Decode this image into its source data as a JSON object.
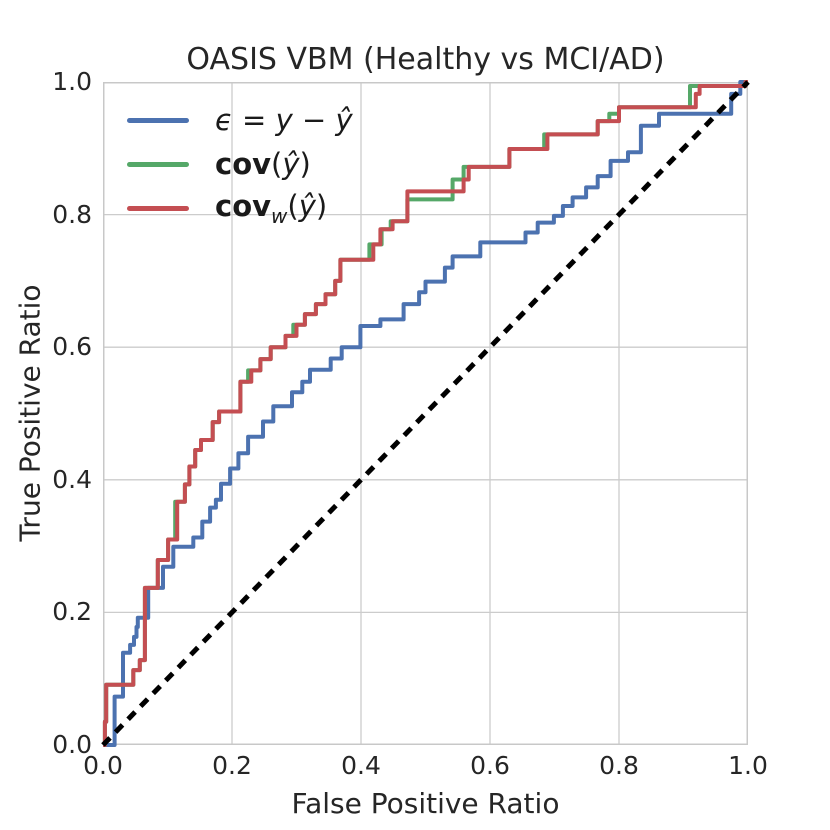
{
  "title": "OASIS VBM (Healthy vs MCI/AD)",
  "colors": {
    "background": "#ffffff",
    "grid": "#cccccc",
    "spine": "#c8c8c8",
    "text": "#262626",
    "series_blue": "#4C72B0",
    "series_green": "#55A868",
    "series_red": "#C44E52",
    "chance_line": "#000000"
  },
  "chart_data": {
    "type": "line",
    "subtype": "roc-step-curves",
    "title": "OASIS VBM (Healthy vs MCI/AD)",
    "xlabel": "False Positive Ratio",
    "ylabel": "True Positive Ratio",
    "xlim": [
      0.0,
      1.0
    ],
    "ylim": [
      0.0,
      1.0
    ],
    "grid": true,
    "legend_position": "upper left",
    "x_ticks": {
      "values": [
        0.0,
        0.2,
        0.4,
        0.6,
        0.8,
        1.0
      ],
      "labels": [
        "0.0",
        "0.2",
        "0.4",
        "0.6",
        "0.8",
        "1.0"
      ]
    },
    "y_ticks": {
      "values": [
        0.0,
        0.2,
        0.4,
        0.6,
        0.8,
        1.0
      ],
      "labels": [
        "0.0",
        "0.2",
        "0.4",
        "0.6",
        "0.8",
        "1.0"
      ]
    },
    "series": [
      {
        "key": "epsilon-residual",
        "name": "ϵ = y − ŷ",
        "color": "#4C72B0",
        "line_style": "solid",
        "line_width": 4,
        "points": [
          [
            0,
            0
          ],
          [
            0.018,
            0
          ],
          [
            0.018,
            0.073
          ],
          [
            0.031,
            0.073
          ],
          [
            0.031,
            0.139
          ],
          [
            0.042,
            0.139
          ],
          [
            0.042,
            0.151
          ],
          [
            0.048,
            0.151
          ],
          [
            0.048,
            0.163
          ],
          [
            0.052,
            0.163
          ],
          [
            0.052,
            0.178
          ],
          [
            0.054,
            0.178
          ],
          [
            0.054,
            0.192
          ],
          [
            0.07,
            0.192
          ],
          [
            0.07,
            0.237
          ],
          [
            0.093,
            0.237
          ],
          [
            0.093,
            0.269
          ],
          [
            0.109,
            0.269
          ],
          [
            0.109,
            0.299
          ],
          [
            0.14,
            0.299
          ],
          [
            0.14,
            0.313
          ],
          [
            0.154,
            0.313
          ],
          [
            0.154,
            0.337
          ],
          [
            0.166,
            0.337
          ],
          [
            0.166,
            0.358
          ],
          [
            0.175,
            0.358
          ],
          [
            0.175,
            0.37
          ],
          [
            0.183,
            0.37
          ],
          [
            0.183,
            0.394
          ],
          [
            0.197,
            0.394
          ],
          [
            0.197,
            0.417
          ],
          [
            0.21,
            0.417
          ],
          [
            0.21,
            0.44
          ],
          [
            0.225,
            0.44
          ],
          [
            0.225,
            0.465
          ],
          [
            0.248,
            0.465
          ],
          [
            0.248,
            0.488
          ],
          [
            0.264,
            0.488
          ],
          [
            0.264,
            0.511
          ],
          [
            0.293,
            0.511
          ],
          [
            0.293,
            0.532
          ],
          [
            0.309,
            0.532
          ],
          [
            0.309,
            0.548
          ],
          [
            0.321,
            0.548
          ],
          [
            0.321,
            0.566
          ],
          [
            0.353,
            0.566
          ],
          [
            0.353,
            0.583
          ],
          [
            0.37,
            0.583
          ],
          [
            0.37,
            0.6
          ],
          [
            0.399,
            0.6
          ],
          [
            0.399,
            0.632
          ],
          [
            0.43,
            0.632
          ],
          [
            0.43,
            0.642
          ],
          [
            0.466,
            0.642
          ],
          [
            0.466,
            0.665
          ],
          [
            0.49,
            0.665
          ],
          [
            0.49,
            0.683
          ],
          [
            0.5,
            0.683
          ],
          [
            0.5,
            0.699
          ],
          [
            0.53,
            0.699
          ],
          [
            0.53,
            0.72
          ],
          [
            0.542,
            0.72
          ],
          [
            0.542,
            0.737
          ],
          [
            0.585,
            0.737
          ],
          [
            0.585,
            0.758
          ],
          [
            0.655,
            0.758
          ],
          [
            0.655,
            0.773
          ],
          [
            0.674,
            0.773
          ],
          [
            0.674,
            0.788
          ],
          [
            0.699,
            0.788
          ],
          [
            0.699,
            0.798
          ],
          [
            0.713,
            0.798
          ],
          [
            0.713,
            0.813
          ],
          [
            0.728,
            0.813
          ],
          [
            0.728,
            0.826
          ],
          [
            0.749,
            0.826
          ],
          [
            0.749,
            0.841
          ],
          [
            0.767,
            0.841
          ],
          [
            0.767,
            0.858
          ],
          [
            0.787,
            0.858
          ],
          [
            0.787,
            0.881
          ],
          [
            0.814,
            0.881
          ],
          [
            0.814,
            0.894
          ],
          [
            0.834,
            0.894
          ],
          [
            0.834,
            0.934
          ],
          [
            0.862,
            0.934
          ],
          [
            0.862,
            0.952
          ],
          [
            0.974,
            0.952
          ],
          [
            0.974,
            0.982
          ],
          [
            0.988,
            0.982
          ],
          [
            0.988,
            1
          ],
          [
            1,
            1
          ]
        ]
      },
      {
        "key": "cov",
        "name": "cov(ŷ)",
        "color": "#55A868",
        "line_style": "solid",
        "line_width": 4,
        "points": [
          [
            0,
            0
          ],
          [
            0.003,
            0
          ],
          [
            0.003,
            0.035
          ],
          [
            0.005,
            0.035
          ],
          [
            0.005,
            0.091
          ],
          [
            0.047,
            0.091
          ],
          [
            0.047,
            0.113
          ],
          [
            0.057,
            0.113
          ],
          [
            0.057,
            0.128
          ],
          [
            0.065,
            0.128
          ],
          [
            0.065,
            0.237
          ],
          [
            0.085,
            0.237
          ],
          [
            0.085,
            0.279
          ],
          [
            0.101,
            0.279
          ],
          [
            0.101,
            0.31
          ],
          [
            0.112,
            0.31
          ],
          [
            0.112,
            0.367
          ],
          [
            0.127,
            0.367
          ],
          [
            0.127,
            0.393
          ],
          [
            0.134,
            0.393
          ],
          [
            0.134,
            0.42
          ],
          [
            0.143,
            0.42
          ],
          [
            0.143,
            0.445
          ],
          [
            0.152,
            0.445
          ],
          [
            0.152,
            0.46
          ],
          [
            0.17,
            0.46
          ],
          [
            0.17,
            0.487
          ],
          [
            0.18,
            0.487
          ],
          [
            0.18,
            0.503
          ],
          [
            0.213,
            0.503
          ],
          [
            0.213,
            0.548
          ],
          [
            0.225,
            0.548
          ],
          [
            0.225,
            0.565
          ],
          [
            0.244,
            0.565
          ],
          [
            0.244,
            0.582
          ],
          [
            0.26,
            0.582
          ],
          [
            0.26,
            0.6
          ],
          [
            0.283,
            0.6
          ],
          [
            0.283,
            0.617
          ],
          [
            0.295,
            0.617
          ],
          [
            0.295,
            0.634
          ],
          [
            0.313,
            0.634
          ],
          [
            0.313,
            0.65
          ],
          [
            0.33,
            0.65
          ],
          [
            0.33,
            0.665
          ],
          [
            0.345,
            0.665
          ],
          [
            0.345,
            0.68
          ],
          [
            0.36,
            0.68
          ],
          [
            0.36,
            0.7
          ],
          [
            0.368,
            0.7
          ],
          [
            0.368,
            0.732
          ],
          [
            0.413,
            0.732
          ],
          [
            0.413,
            0.755
          ],
          [
            0.432,
            0.755
          ],
          [
            0.432,
            0.778
          ],
          [
            0.446,
            0.778
          ],
          [
            0.446,
            0.79
          ],
          [
            0.472,
            0.79
          ],
          [
            0.472,
            0.823
          ],
          [
            0.542,
            0.823
          ],
          [
            0.542,
            0.853
          ],
          [
            0.559,
            0.853
          ],
          [
            0.559,
            0.872
          ],
          [
            0.63,
            0.872
          ],
          [
            0.63,
            0.899
          ],
          [
            0.684,
            0.899
          ],
          [
            0.684,
            0.921
          ],
          [
            0.767,
            0.921
          ],
          [
            0.767,
            0.941
          ],
          [
            0.785,
            0.941
          ],
          [
            0.785,
            0.952
          ],
          [
            0.8,
            0.952
          ],
          [
            0.8,
            0.962
          ],
          [
            0.91,
            0.962
          ],
          [
            0.91,
            0.994
          ],
          [
            0.996,
            0.994
          ],
          [
            0.996,
            1
          ],
          [
            1,
            1
          ]
        ]
      },
      {
        "key": "cov-weighted",
        "name": "cov_w(ŷ)",
        "color": "#C44E52",
        "line_style": "solid",
        "line_width": 4,
        "points": [
          [
            0,
            0
          ],
          [
            0.003,
            0
          ],
          [
            0.003,
            0.035
          ],
          [
            0.005,
            0.035
          ],
          [
            0.005,
            0.091
          ],
          [
            0.047,
            0.091
          ],
          [
            0.047,
            0.113
          ],
          [
            0.057,
            0.113
          ],
          [
            0.057,
            0.128
          ],
          [
            0.065,
            0.128
          ],
          [
            0.065,
            0.237
          ],
          [
            0.085,
            0.237
          ],
          [
            0.085,
            0.279
          ],
          [
            0.101,
            0.279
          ],
          [
            0.101,
            0.31
          ],
          [
            0.115,
            0.31
          ],
          [
            0.115,
            0.367
          ],
          [
            0.127,
            0.367
          ],
          [
            0.127,
            0.393
          ],
          [
            0.134,
            0.393
          ],
          [
            0.134,
            0.42
          ],
          [
            0.143,
            0.42
          ],
          [
            0.143,
            0.445
          ],
          [
            0.152,
            0.445
          ],
          [
            0.152,
            0.46
          ],
          [
            0.17,
            0.46
          ],
          [
            0.17,
            0.487
          ],
          [
            0.18,
            0.487
          ],
          [
            0.18,
            0.503
          ],
          [
            0.213,
            0.503
          ],
          [
            0.213,
            0.548
          ],
          [
            0.23,
            0.548
          ],
          [
            0.23,
            0.565
          ],
          [
            0.244,
            0.565
          ],
          [
            0.244,
            0.582
          ],
          [
            0.26,
            0.582
          ],
          [
            0.26,
            0.6
          ],
          [
            0.283,
            0.6
          ],
          [
            0.283,
            0.617
          ],
          [
            0.3,
            0.617
          ],
          [
            0.3,
            0.634
          ],
          [
            0.313,
            0.634
          ],
          [
            0.313,
            0.65
          ],
          [
            0.33,
            0.65
          ],
          [
            0.33,
            0.665
          ],
          [
            0.345,
            0.665
          ],
          [
            0.345,
            0.68
          ],
          [
            0.36,
            0.68
          ],
          [
            0.36,
            0.7
          ],
          [
            0.368,
            0.7
          ],
          [
            0.368,
            0.732
          ],
          [
            0.419,
            0.732
          ],
          [
            0.419,
            0.755
          ],
          [
            0.43,
            0.755
          ],
          [
            0.43,
            0.778
          ],
          [
            0.449,
            0.778
          ],
          [
            0.449,
            0.79
          ],
          [
            0.472,
            0.79
          ],
          [
            0.472,
            0.835
          ],
          [
            0.559,
            0.835
          ],
          [
            0.559,
            0.853
          ],
          [
            0.567,
            0.853
          ],
          [
            0.567,
            0.872
          ],
          [
            0.63,
            0.872
          ],
          [
            0.63,
            0.899
          ],
          [
            0.689,
            0.899
          ],
          [
            0.689,
            0.921
          ],
          [
            0.767,
            0.921
          ],
          [
            0.767,
            0.941
          ],
          [
            0.8,
            0.941
          ],
          [
            0.8,
            0.962
          ],
          [
            0.919,
            0.962
          ],
          [
            0.919,
            0.982
          ],
          [
            0.925,
            0.982
          ],
          [
            0.925,
            0.994
          ],
          [
            0.996,
            0.994
          ],
          [
            0.996,
            1
          ],
          [
            1,
            1
          ]
        ]
      },
      {
        "key": "chance-diagonal",
        "name": "chance",
        "color": "#000000",
        "line_style": "dashed",
        "line_width": 5,
        "points": [
          [
            0,
            0
          ],
          [
            1,
            1
          ]
        ]
      }
    ],
    "legend": [
      {
        "series": "epsilon-residual",
        "color": "#4C72B0",
        "segments": [
          {
            "t": "ϵ",
            "s": "i"
          },
          {
            "t": " = ",
            "s": "n"
          },
          {
            "t": "y",
            "s": "i"
          },
          {
            "t": " − ",
            "s": "n"
          },
          {
            "t": "ŷ",
            "s": "i"
          }
        ]
      },
      {
        "series": "cov",
        "color": "#55A868",
        "segments": [
          {
            "t": "cov",
            "s": "b"
          },
          {
            "t": "(",
            "s": "n"
          },
          {
            "t": "ŷ",
            "s": "i"
          },
          {
            "t": ")",
            "s": "n"
          }
        ]
      },
      {
        "series": "cov-weighted",
        "color": "#C44E52",
        "segments": [
          {
            "t": "cov",
            "s": "b"
          },
          {
            "t": "w",
            "s": "sub"
          },
          {
            "t": "(",
            "s": "n"
          },
          {
            "t": "ŷ",
            "s": "i"
          },
          {
            "t": ")",
            "s": "n"
          }
        ]
      }
    ]
  }
}
